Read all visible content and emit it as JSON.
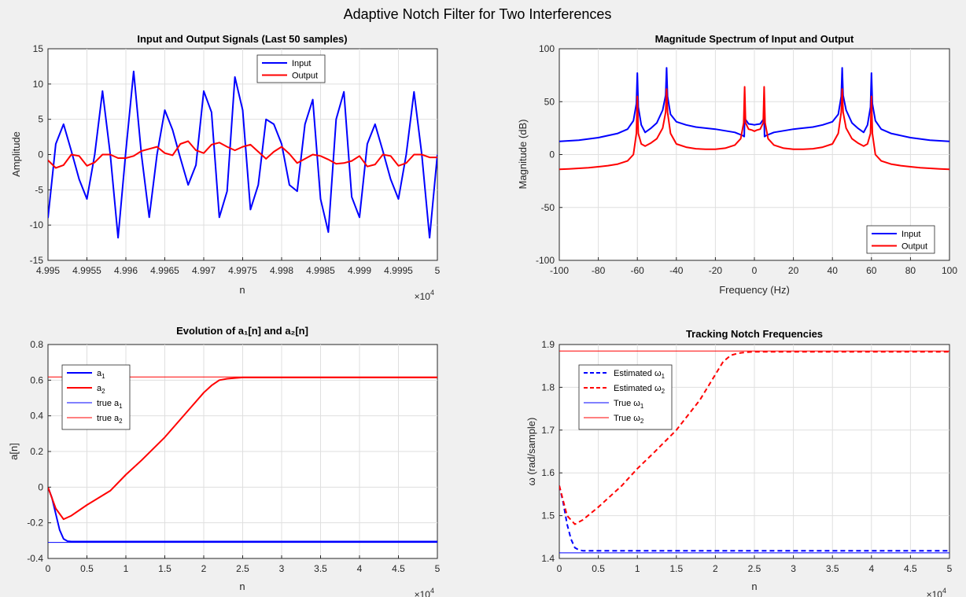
{
  "figure": {
    "suptitle": "Adaptive Notch Filter for Two Interferences"
  },
  "colors": {
    "input": "#0000ff",
    "output": "#ff0000"
  },
  "chart_data": [
    {
      "id": "p1",
      "type": "line",
      "title": "Input and Output Signals (Last 50 samples)",
      "xlabel": "n",
      "ylabel": "Amplitude",
      "xlim": [
        49950,
        50000
      ],
      "ylim": [
        -15,
        15
      ],
      "x_tick_labels": [
        "4.995",
        "4.9955",
        "4.996",
        "4.9965",
        "4.997",
        "4.9975",
        "4.998",
        "4.9985",
        "4.999",
        "4.9995",
        "5"
      ],
      "y_tick_labels": [
        "-15",
        "-10",
        "-5",
        "0",
        "5",
        "10",
        "15"
      ],
      "x_exponent": "4",
      "x_start": 49950,
      "x_step": 1,
      "legend_position": "top-center",
      "series": [
        {
          "name": "Input",
          "values": [
            -9,
            1.5,
            4.3,
            0.5,
            -3.5,
            -6.3,
            0,
            9,
            0,
            -11.8,
            0.5,
            11.8,
            0,
            -8.9,
            0,
            6.3,
            3.5,
            -0.5,
            -4.3,
            -1.5,
            9,
            6,
            -8.9,
            -5.2,
            11,
            6.3,
            -7.8,
            -4.3,
            5,
            4.3,
            1.5,
            -4.3,
            -5.2,
            4.3,
            7.8,
            -6.3,
            -11,
            5,
            8.9,
            -6,
            -8.9,
            1.5,
            4.3,
            0.5,
            -3.5,
            -6.3,
            0,
            8.9,
            0,
            -11.8,
            0
          ]
        },
        {
          "name": "Output",
          "values": [
            -0.8,
            -1.9,
            -1.5,
            0,
            -0.2,
            -1.6,
            -1.1,
            0,
            0,
            -0.5,
            -0.5,
            -0.2,
            0.5,
            0.8,
            1.1,
            0.2,
            -0.1,
            1.5,
            1.9,
            0.6,
            0.2,
            1.4,
            1.7,
            1.1,
            0.6,
            1.1,
            1.4,
            0.4,
            -0.6,
            0.4,
            1.1,
            0.1,
            -1.2,
            -0.6,
            0,
            -0.2,
            -0.7,
            -1.3,
            -1.2,
            -0.9,
            -0.2,
            -1.7,
            -1.4,
            0,
            -0.2,
            -1.6,
            -1.2,
            0,
            0,
            -0.4,
            -0.4
          ]
        }
      ]
    },
    {
      "id": "p2",
      "type": "line",
      "title": "Magnitude Spectrum of Input and Output",
      "xlabel": "Frequency (Hz)",
      "ylabel": "Magnitude (dB)",
      "xlim": [
        -100,
        100
      ],
      "ylim": [
        -100,
        100
      ],
      "x_tick_labels": [
        "-100",
        "-80",
        "-60",
        "-40",
        "-20",
        "0",
        "20",
        "40",
        "60",
        "80",
        "100"
      ],
      "y_tick_labels": [
        "-100",
        "-50",
        "0",
        "50",
        "100"
      ],
      "legend_position": "bottom-right",
      "series": [
        {
          "name": "Input",
          "x": [
            -100,
            -90,
            -80,
            -70,
            -65,
            -62,
            -60.5,
            -60,
            -59.5,
            -58,
            -56,
            -53,
            -50,
            -47,
            -45.5,
            -45,
            -44.5,
            -43,
            -40,
            -35,
            -30,
            -20,
            -10,
            -6,
            -5.2,
            -5,
            -4.5,
            -3,
            -1,
            0,
            1,
            3,
            4.5,
            5,
            5.2,
            6,
            10,
            20,
            30,
            35,
            40,
            43,
            44.5,
            45,
            45.5,
            47,
            50,
            53,
            56,
            58,
            59.5,
            60,
            60.5,
            62,
            65,
            70,
            80,
            90,
            100
          ],
          "y": [
            12.5,
            13.5,
            16,
            20,
            24,
            32,
            48,
            77,
            45,
            28,
            21,
            25,
            30,
            42,
            56,
            82,
            55,
            38,
            31,
            28,
            26,
            24,
            21,
            18,
            17,
            35,
            33,
            29,
            28.5,
            28,
            28.5,
            29,
            33,
            35,
            17,
            18,
            21,
            24,
            26,
            28,
            31,
            38,
            55,
            82,
            56,
            42,
            30,
            25,
            21,
            28,
            45,
            77,
            48,
            32,
            24,
            20,
            16,
            13.5,
            12.5
          ]
        },
        {
          "name": "Output",
          "x": [
            -100,
            -95,
            -90,
            -85,
            -80,
            -75,
            -70,
            -65,
            -62,
            -60.5,
            -60,
            -59.5,
            -58,
            -56,
            -53,
            -50,
            -47,
            -45.5,
            -45,
            -44.5,
            -43,
            -40,
            -35,
            -30,
            -25,
            -20,
            -15,
            -10,
            -7,
            -5.5,
            -5,
            -4.5,
            -3,
            -1,
            0,
            1,
            3,
            4.5,
            5,
            5.5,
            7,
            10,
            15,
            20,
            25,
            30,
            35,
            40,
            43,
            44.5,
            45,
            45.5,
            47,
            50,
            53,
            56,
            58,
            59.5,
            60,
            60.5,
            62,
            65,
            70,
            75,
            80,
            85,
            90,
            95,
            100
          ],
          "y": [
            -14,
            -13.5,
            -13,
            -12.5,
            -11.5,
            -10.5,
            -9,
            -6,
            0,
            20,
            55,
            20,
            10,
            8,
            11,
            15,
            25,
            40,
            62,
            40,
            20,
            10,
            7,
            5.5,
            5,
            5,
            6,
            9,
            15,
            30,
            64,
            30,
            24,
            23,
            22,
            23,
            24,
            30,
            64,
            30,
            15,
            9,
            6,
            5,
            5,
            5.5,
            7,
            10,
            20,
            40,
            62,
            40,
            25,
            15,
            11,
            8,
            10,
            20,
            55,
            20,
            0,
            -6,
            -9,
            -10.5,
            -11.5,
            -12.5,
            -13,
            -13.5,
            -14
          ]
        }
      ]
    },
    {
      "id": "p3",
      "type": "line",
      "title": "Evolution of a₁[n] and a₂[n]",
      "xlabel": "n",
      "ylabel": "a[n]",
      "xlim": [
        0,
        50000
      ],
      "ylim": [
        -0.4,
        0.8
      ],
      "x_tick_labels": [
        "0",
        "0.5",
        "1",
        "1.5",
        "2",
        "2.5",
        "3",
        "3.5",
        "4",
        "4.5",
        "5"
      ],
      "y_tick_labels": [
        "-0.4",
        "-0.2",
        "0",
        "0.2",
        "0.4",
        "0.6",
        "0.8"
      ],
      "x_exponent": "4",
      "legend_position": "top-left",
      "series": [
        {
          "name": "a1",
          "x": [
            0,
            500,
            1000,
            1500,
            2000,
            2500,
            3000,
            4000,
            50000
          ],
          "y": [
            0,
            -0.06,
            -0.15,
            -0.24,
            -0.29,
            -0.303,
            -0.305,
            -0.305,
            -0.305
          ]
        },
        {
          "name": "a2",
          "x": [
            0,
            1000,
            2000,
            3000,
            5000,
            8000,
            10000,
            12000,
            15000,
            18000,
            20000,
            21000,
            22000,
            23000,
            24000,
            25000,
            30000,
            50000
          ],
          "y": [
            0,
            -0.12,
            -0.18,
            -0.16,
            -0.1,
            -0.02,
            0.07,
            0.15,
            0.28,
            0.43,
            0.53,
            0.57,
            0.6,
            0.608,
            0.612,
            0.615,
            0.615,
            0.615
          ]
        },
        {
          "name": "true a1",
          "x": [
            0,
            50000
          ],
          "y": [
            -0.31,
            -0.31
          ]
        },
        {
          "name": "true a2",
          "x": [
            0,
            50000
          ],
          "y": [
            0.618,
            0.618
          ]
        }
      ]
    },
    {
      "id": "p4",
      "type": "line",
      "title": "Tracking Notch Frequencies",
      "xlabel": "n",
      "ylabel": "ω (rad/sample)",
      "xlim": [
        0,
        50000
      ],
      "ylim": [
        1.4,
        1.9
      ],
      "x_tick_labels": [
        "0",
        "0.5",
        "1",
        "1.5",
        "2",
        "2.5",
        "3",
        "3.5",
        "4",
        "4.5",
        "5"
      ],
      "y_tick_labels": [
        "1.4",
        "1.5",
        "1.6",
        "1.7",
        "1.8",
        "1.9"
      ],
      "x_exponent": "4",
      "legend_position": "top-left",
      "series": [
        {
          "name": "Estimated ω1",
          "x": [
            0,
            500,
            1000,
            1500,
            2000,
            2500,
            3000,
            50000
          ],
          "y": [
            1.57,
            1.53,
            1.48,
            1.445,
            1.425,
            1.42,
            1.418,
            1.418
          ]
        },
        {
          "name": "Estimated ω2",
          "x": [
            0,
            1000,
            2000,
            3000,
            5000,
            8000,
            10000,
            12000,
            15000,
            18000,
            20000,
            21000,
            22000,
            23000,
            24000,
            25000,
            50000
          ],
          "y": [
            1.57,
            1.5,
            1.48,
            1.49,
            1.52,
            1.57,
            1.61,
            1.645,
            1.7,
            1.77,
            1.83,
            1.86,
            1.875,
            1.88,
            1.882,
            1.883,
            1.883
          ]
        },
        {
          "name": "True ω1",
          "x": [
            0,
            50000
          ],
          "y": [
            1.413,
            1.413
          ]
        },
        {
          "name": "True ω2",
          "x": [
            0,
            50000
          ],
          "y": [
            1.885,
            1.885
          ]
        }
      ]
    }
  ],
  "legends": {
    "p1": [
      "Input",
      "Output"
    ],
    "p2": [
      "Input",
      "Output"
    ],
    "p3": [
      {
        "base": "a",
        "sub": "1"
      },
      {
        "base": "a",
        "sub": "2"
      },
      {
        "base": "true a",
        "sub": "1"
      },
      {
        "base": "true a",
        "sub": "2"
      }
    ],
    "p4": [
      {
        "base": "Estimated ω",
        "sub": "1"
      },
      {
        "base": "Estimated ω",
        "sub": "2"
      },
      {
        "base": "True ω",
        "sub": "1"
      },
      {
        "base": "True ω",
        "sub": "2"
      }
    ]
  },
  "exponent_base": "×10"
}
